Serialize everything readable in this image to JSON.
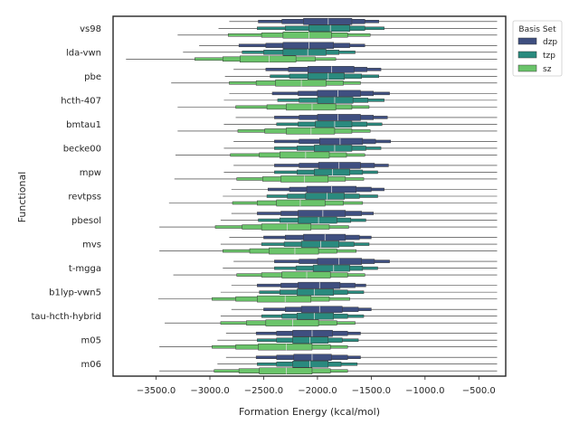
{
  "chart_data": {
    "type": "boxen",
    "orientation": "horizontal",
    "title": "",
    "xlabel": "Formation Energy (kcal/mol)",
    "ylabel": "Functional",
    "xlim": [
      -3900,
      -250
    ],
    "xticks": [
      -3500,
      -3000,
      -2500,
      -2000,
      -1500,
      -1000,
      -500
    ],
    "xtick_labels": [
      "−3500.0",
      "−3000.0",
      "−2500.0",
      "−2000.0",
      "−1500.0",
      "−1000.0",
      "−500.0"
    ],
    "grid": false,
    "legend": {
      "title": "Basis Set",
      "position": "top-right"
    },
    "categories": [
      "vs98",
      "lda-vwn",
      "pbe",
      "hcth-407",
      "bmtau1",
      "becke00",
      "mpw",
      "revtpss",
      "pbesol",
      "mvs",
      "t-mgga",
      "b1lyp-vwn5",
      "tau-hcth-hybrid",
      "m05",
      "m06"
    ],
    "series": [
      {
        "name": "dzp",
        "color": "#3f4f80",
        "stats": [
          {
            "min": -2820,
            "max": -330,
            "q1": -2130,
            "median": -1900,
            "q3": -1680,
            "p12": -2330,
            "p87": -1560,
            "p06": -2550,
            "p94": -1430
          },
          {
            "min": -3100,
            "max": -330,
            "q1": -2320,
            "median": -2080,
            "q3": -1850,
            "p12": -2480,
            "p87": -1700,
            "p06": -2730,
            "p94": -1560
          },
          {
            "min": -2780,
            "max": -330,
            "q1": -2090,
            "median": -1870,
            "q3": -1660,
            "p12": -2270,
            "p87": -1540,
            "p06": -2480,
            "p94": -1410
          },
          {
            "min": -2820,
            "max": -330,
            "q1": -2000,
            "median": -1810,
            "q3": -1600,
            "p12": -2180,
            "p87": -1480,
            "p06": -2420,
            "p94": -1330
          },
          {
            "min": -2760,
            "max": -330,
            "q1": -2000,
            "median": -1810,
            "q3": -1600,
            "p12": -2170,
            "p87": -1480,
            "p06": -2400,
            "p94": -1350
          },
          {
            "min": -2780,
            "max": -330,
            "q1": -1980,
            "median": -1790,
            "q3": -1580,
            "p12": -2170,
            "p87": -1460,
            "p06": -2400,
            "p94": -1320
          },
          {
            "min": -2780,
            "max": -330,
            "q1": -1990,
            "median": -1800,
            "q3": -1600,
            "p12": -2170,
            "p87": -1470,
            "p06": -2400,
            "p94": -1340
          },
          {
            "min": -2800,
            "max": -330,
            "q1": -2100,
            "median": -1870,
            "q3": -1640,
            "p12": -2260,
            "p87": -1500,
            "p06": -2460,
            "p94": -1380
          },
          {
            "min": -2800,
            "max": -330,
            "q1": -2180,
            "median": -1950,
            "q3": -1740,
            "p12": -2340,
            "p87": -1590,
            "p06": -2560,
            "p94": -1480
          },
          {
            "min": -2820,
            "max": -330,
            "q1": -2130,
            "median": -1930,
            "q3": -1740,
            "p12": -2300,
            "p87": -1610,
            "p06": -2500,
            "p94": -1500
          },
          {
            "min": -2780,
            "max": -330,
            "q1": -2000,
            "median": -1800,
            "q3": -1590,
            "p12": -2170,
            "p87": -1470,
            "p06": -2400,
            "p94": -1330
          },
          {
            "min": -2800,
            "max": -330,
            "q1": -2180,
            "median": -1980,
            "q3": -1790,
            "p12": -2340,
            "p87": -1650,
            "p06": -2560,
            "p94": -1550
          },
          {
            "min": -2800,
            "max": -330,
            "q1": -2150,
            "median": -1980,
            "q3": -1770,
            "p12": -2300,
            "p87": -1620,
            "p06": -2500,
            "p94": -1500
          },
          {
            "min": -2850,
            "max": -330,
            "q1": -2230,
            "median": -2050,
            "q3": -1860,
            "p12": -2380,
            "p87": -1720,
            "p06": -2570,
            "p94": -1600
          },
          {
            "min": -2850,
            "max": -330,
            "q1": -2220,
            "median": -2050,
            "q3": -1870,
            "p12": -2380,
            "p87": -1720,
            "p06": -2570,
            "p94": -1600
          }
        ]
      },
      {
        "name": "tzp",
        "color": "#2a8a7e",
        "stats": [
          {
            "min": -2920,
            "max": -330,
            "q1": -2080,
            "median": -1880,
            "q3": -1700,
            "p12": -2300,
            "p87": -1560,
            "p06": -2560,
            "p94": -1380
          },
          {
            "min": -3250,
            "max": -330,
            "q1": -2320,
            "median": -2090,
            "q3": -1920,
            "p12": -2500,
            "p87": -1800,
            "p06": -2700,
            "p94": -1650
          },
          {
            "min": -2860,
            "max": -330,
            "q1": -2090,
            "median": -1900,
            "q3": -1750,
            "p12": -2260,
            "p87": -1590,
            "p06": -2440,
            "p94": -1430
          },
          {
            "min": -2870,
            "max": -330,
            "q1": -2000,
            "median": -1840,
            "q3": -1670,
            "p12": -2170,
            "p87": -1530,
            "p06": -2370,
            "p94": -1380
          },
          {
            "min": -2870,
            "max": -330,
            "q1": -2020,
            "median": -1840,
            "q3": -1680,
            "p12": -2180,
            "p87": -1540,
            "p06": -2380,
            "p94": -1400
          },
          {
            "min": -2870,
            "max": -330,
            "q1": -2030,
            "median": -1840,
            "q3": -1680,
            "p12": -2190,
            "p87": -1550,
            "p06": -2400,
            "p94": -1410
          },
          {
            "min": -2870,
            "max": -330,
            "q1": -2030,
            "median": -1860,
            "q3": -1700,
            "p12": -2190,
            "p87": -1580,
            "p06": -2400,
            "p94": -1440
          },
          {
            "min": -2880,
            "max": -330,
            "q1": -2110,
            "median": -1910,
            "q3": -1750,
            "p12": -2280,
            "p87": -1610,
            "p06": -2470,
            "p94": -1440
          },
          {
            "min": -2900,
            "max": -330,
            "q1": -2180,
            "median": -1990,
            "q3": -1820,
            "p12": -2350,
            "p87": -1690,
            "p06": -2550,
            "p94": -1550
          },
          {
            "min": -2900,
            "max": -330,
            "q1": -2150,
            "median": -1970,
            "q3": -1800,
            "p12": -2310,
            "p87": -1660,
            "p06": -2520,
            "p94": -1520
          },
          {
            "min": -2880,
            "max": -330,
            "q1": -2040,
            "median": -1850,
            "q3": -1700,
            "p12": -2200,
            "p87": -1580,
            "p06": -2400,
            "p94": -1440
          },
          {
            "min": -2900,
            "max": -330,
            "q1": -2190,
            "median": -2030,
            "q3": -1850,
            "p12": -2350,
            "p87": -1720,
            "p06": -2540,
            "p94": -1570
          },
          {
            "min": -2900,
            "max": -330,
            "q1": -2190,
            "median": -2030,
            "q3": -1850,
            "p12": -2330,
            "p87": -1720,
            "p06": -2520,
            "p94": -1570
          },
          {
            "min": -2930,
            "max": -330,
            "q1": -2230,
            "median": -2070,
            "q3": -1900,
            "p12": -2380,
            "p87": -1770,
            "p06": -2560,
            "p94": -1620
          },
          {
            "min": -2930,
            "max": -330,
            "q1": -2230,
            "median": -2070,
            "q3": -1900,
            "p12": -2380,
            "p87": -1780,
            "p06": -2560,
            "p94": -1630
          }
        ]
      },
      {
        "name": "sz",
        "color": "#6ac46a",
        "stats": [
          {
            "min": -3300,
            "max": -330,
            "q1": -2320,
            "median": -2080,
            "q3": -1870,
            "p12": -2520,
            "p87": -1720,
            "p06": -2830,
            "p94": -1510
          },
          {
            "min": -3780,
            "max": -330,
            "q1": -2720,
            "median": -2450,
            "q3": -2200,
            "p12": -2880,
            "p87": -2020,
            "p06": -3140,
            "p94": -1830
          },
          {
            "min": -3360,
            "max": -330,
            "q1": -2390,
            "median": -2150,
            "q3": -1920,
            "p12": -2570,
            "p87": -1760,
            "p06": -2820,
            "p94": -1600
          },
          {
            "min": -3300,
            "max": -330,
            "q1": -2290,
            "median": -2050,
            "q3": -1830,
            "p12": -2470,
            "p87": -1680,
            "p06": -2760,
            "p94": -1520
          },
          {
            "min": -3300,
            "max": -330,
            "q1": -2290,
            "median": -2060,
            "q3": -1840,
            "p12": -2490,
            "p87": -1680,
            "p06": -2740,
            "p94": -1510
          },
          {
            "min": -3320,
            "max": -330,
            "q1": -2350,
            "median": -2110,
            "q3": -1890,
            "p12": -2540,
            "p87": -1730,
            "p06": -2810,
            "p94": -1560
          },
          {
            "min": -3330,
            "max": -330,
            "q1": -2340,
            "median": -2120,
            "q3": -1900,
            "p12": -2510,
            "p87": -1740,
            "p06": -2750,
            "p94": -1570
          },
          {
            "min": -3380,
            "max": -330,
            "q1": -2380,
            "median": -2160,
            "q3": -1930,
            "p12": -2560,
            "p87": -1760,
            "p06": -2790,
            "p94": -1580
          },
          {
            "min": -3470,
            "max": -330,
            "q1": -2520,
            "median": -2280,
            "q3": -2060,
            "p12": -2700,
            "p87": -1890,
            "p06": -2950,
            "p94": -1710
          },
          {
            "min": -3470,
            "max": -330,
            "q1": -2450,
            "median": -2210,
            "q3": -1990,
            "p12": -2630,
            "p87": -1820,
            "p06": -2880,
            "p94": -1640
          },
          {
            "min": -3340,
            "max": -330,
            "q1": -2330,
            "median": -2100,
            "q3": -1880,
            "p12": -2520,
            "p87": -1720,
            "p06": -2750,
            "p94": -1560
          },
          {
            "min": -3480,
            "max": -330,
            "q1": -2560,
            "median": -2300,
            "q3": -2060,
            "p12": -2760,
            "p87": -1890,
            "p06": -2980,
            "p94": -1700
          },
          {
            "min": -3420,
            "max": -330,
            "q1": -2480,
            "median": -2230,
            "q3": -1990,
            "p12": -2660,
            "p87": -1820,
            "p06": -2900,
            "p94": -1650
          },
          {
            "min": -3470,
            "max": -330,
            "q1": -2550,
            "median": -2290,
            "q3": -2050,
            "p12": -2760,
            "p87": -1880,
            "p06": -2980,
            "p94": -1720
          },
          {
            "min": -3470,
            "max": -330,
            "q1": -2540,
            "median": -2290,
            "q3": -2050,
            "p12": -2730,
            "p87": -1880,
            "p06": -2960,
            "p94": -1720
          }
        ]
      }
    ]
  }
}
